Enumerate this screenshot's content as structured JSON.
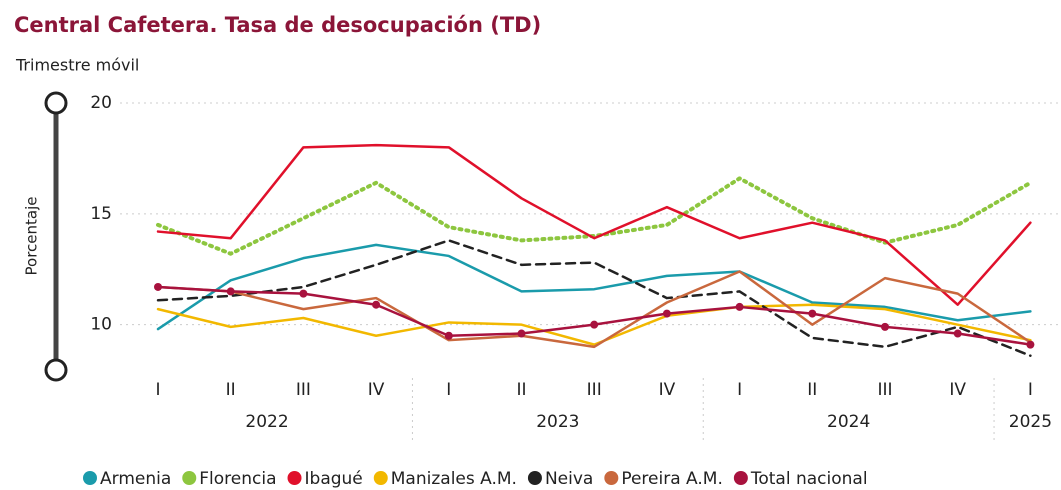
{
  "chart_data": {
    "type": "line",
    "title": "Central Cafetera. Tasa de desocupación (TD)",
    "subtitle": "Trimestre móvil",
    "y_label": "Porcentaje",
    "categories": [
      "I",
      "II",
      "III",
      "IV",
      "I",
      "II",
      "III",
      "IV",
      "I",
      "II",
      "III",
      "IV",
      "I"
    ],
    "category_years": [
      "2022",
      "2022",
      "2022",
      "2022",
      "2023",
      "2023",
      "2023",
      "2023",
      "2024",
      "2024",
      "2024",
      "2024",
      "2025"
    ],
    "ylim": [
      8,
      20
    ],
    "yticks": [
      10,
      15,
      20
    ],
    "grid": true,
    "legend": "bottom",
    "series": [
      {
        "name": "Armenia",
        "color": "#1a9bab",
        "line_style": "solid",
        "values": [
          9.8,
          12.0,
          13.0,
          13.6,
          13.1,
          11.5,
          11.6,
          12.2,
          12.4,
          11.0,
          10.8,
          10.2,
          10.6
        ]
      },
      {
        "name": "Florencia",
        "color": "#8dc63f",
        "line_style": "dotted",
        "values": [
          14.5,
          13.2,
          14.8,
          16.4,
          14.4,
          13.8,
          14.0,
          14.5,
          16.6,
          14.8,
          13.7,
          14.5,
          16.4
        ]
      },
      {
        "name": "Ibagué",
        "color": "#e0102b",
        "line_style": "solid",
        "values": [
          14.2,
          13.9,
          18.0,
          18.1,
          18.0,
          15.7,
          13.9,
          15.3,
          13.9,
          14.6,
          13.8,
          10.9,
          14.6
        ]
      },
      {
        "name": "Manizales A.M.",
        "color": "#f2b800",
        "line_style": "solid",
        "values": [
          10.7,
          9.9,
          10.3,
          9.5,
          10.1,
          10.0,
          9.1,
          10.4,
          10.8,
          10.9,
          10.7,
          10.0,
          9.3
        ]
      },
      {
        "name": "Neiva",
        "color": "#222222",
        "line_style": "dashed",
        "values": [
          11.1,
          11.3,
          11.7,
          12.7,
          13.8,
          12.7,
          12.8,
          11.2,
          11.5,
          9.4,
          9.0,
          9.9,
          8.6
        ]
      },
      {
        "name": "Pereira A.M.",
        "color": "#c9683d",
        "line_style": "solid",
        "values": [
          11.7,
          11.5,
          10.7,
          11.2,
          9.3,
          9.5,
          9.0,
          11.0,
          12.4,
          10.0,
          12.1,
          11.4,
          9.2
        ]
      },
      {
        "name": "Total nacional",
        "color": "#a8123e",
        "line_style": "solid",
        "values": [
          11.7,
          11.5,
          11.4,
          10.9,
          9.5,
          9.6,
          10.0,
          10.5,
          10.8,
          10.5,
          9.9,
          9.6,
          9.1
        ]
      }
    ]
  }
}
